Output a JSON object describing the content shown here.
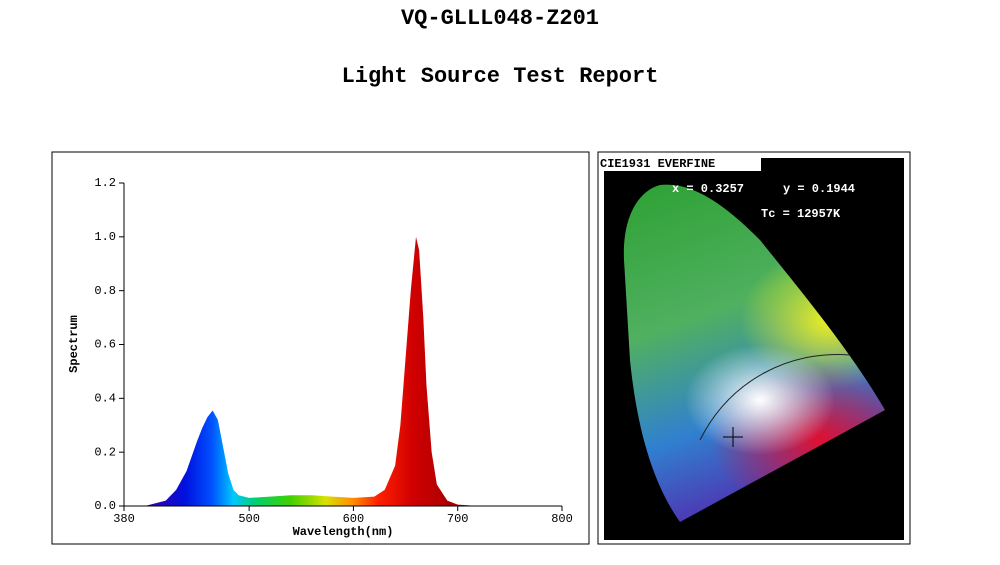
{
  "header": {
    "title": "VQ-GLLL048-Z201",
    "subtitle": "Light Source Test Report"
  },
  "chart_data": {
    "type": "area",
    "xlabel": "Wavelength(nm)",
    "ylabel": "Spectrum",
    "x": [
      380,
      400,
      420,
      430,
      440,
      450,
      455,
      460,
      465,
      470,
      475,
      480,
      485,
      490,
      500,
      520,
      540,
      560,
      580,
      600,
      620,
      630,
      640,
      645,
      650,
      655,
      660,
      663,
      667,
      670,
      675,
      680,
      690,
      700,
      720,
      780
    ],
    "values": [
      0,
      0,
      0.02,
      0.06,
      0.13,
      0.24,
      0.29,
      0.33,
      0.355,
      0.32,
      0.22,
      0.12,
      0.06,
      0.04,
      0.03,
      0.035,
      0.04,
      0.04,
      0.035,
      0.03,
      0.035,
      0.06,
      0.15,
      0.3,
      0.55,
      0.8,
      1.0,
      0.95,
      0.7,
      0.45,
      0.2,
      0.08,
      0.02,
      0.005,
      0,
      0
    ],
    "xlim": [
      380,
      800
    ],
    "xticks": [
      380,
      500,
      600,
      700,
      800
    ],
    "ylim": [
      0,
      1.2
    ],
    "yticks": [
      {
        "value": 0,
        "label": "0.0"
      },
      0.2,
      0.4,
      0.6,
      0.8,
      {
        "value": 1,
        "label": "1.0"
      },
      1.2
    ]
  },
  "cie": {
    "label": "CIE1931 EVERFINE",
    "x_text": "x = 0.3257",
    "y_text": "y = 0.1944",
    "tc_text": "Tc = 12957K"
  }
}
